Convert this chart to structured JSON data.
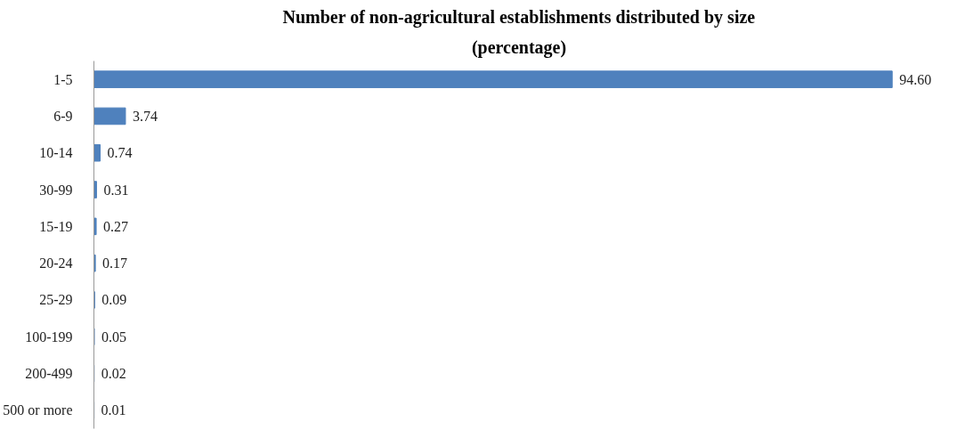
{
  "chart_data": {
    "type": "bar",
    "orientation": "horizontal",
    "title": "Number of non-agricultural establishments distributed by size",
    "subtitle": "(percentage)",
    "categories": [
      "1-5",
      "6-9",
      "10-14",
      "30-99",
      "15-19",
      "20-24",
      "25-29",
      "100-199",
      "200-499",
      "500 or more"
    ],
    "values": [
      94.6,
      3.74,
      0.74,
      0.31,
      0.27,
      0.17,
      0.09,
      0.05,
      0.02,
      0.01
    ],
    "value_labels": [
      "94.60",
      "3.74",
      "0.74",
      "0.31",
      "0.27",
      "0.17",
      "0.09",
      "0.05",
      "0.02",
      "0.01"
    ],
    "color": "#4f81bd",
    "grid": false,
    "tick_labels": "y"
  }
}
